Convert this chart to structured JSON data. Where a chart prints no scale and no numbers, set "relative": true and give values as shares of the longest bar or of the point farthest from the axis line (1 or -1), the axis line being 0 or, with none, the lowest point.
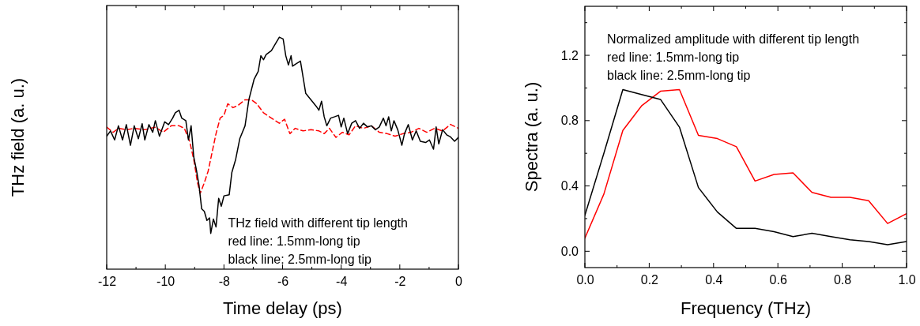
{
  "chart_data": [
    {
      "type": "line",
      "xlabel": "Time delay (ps)",
      "ylabel": "THz field (a. u.)",
      "relative": true,
      "xlim": [
        -12,
        0
      ],
      "xticks": [
        -12,
        {
          "value": -11,
          "label": null
        },
        -10,
        {
          "value": -9,
          "label": null
        },
        -8,
        {
          "value": -7,
          "label": null
        },
        -6,
        {
          "value": -5,
          "label": null
        },
        -4,
        {
          "value": -3,
          "label": null
        },
        -2,
        {
          "value": -1,
          "label": null
        },
        0
      ],
      "annotations": [
        "THz field with different tip length",
        "red line: 1.5mm-long tip",
        "black line: 2.5mm-long tip"
      ],
      "series": [
        {
          "color": "#ff0000",
          "line_style": "dashed",
          "x": [
            -12.0,
            -11.78,
            -11.6,
            -11.33,
            -11.06,
            -10.7,
            -10.34,
            -10.07,
            -9.8,
            -9.53,
            -9.35,
            -9.17,
            -9.03,
            -8.9,
            -8.81,
            -8.67,
            -8.54,
            -8.4,
            -8.27,
            -8.13,
            -8.0,
            -7.87,
            -7.69,
            -7.51,
            -7.28,
            -7.06,
            -6.88,
            -6.65,
            -6.38,
            -6.11,
            -5.93,
            -5.75,
            -5.57,
            -5.3,
            -5.03,
            -4.76,
            -4.58,
            -4.4,
            -4.18,
            -3.96,
            -3.73,
            -3.51,
            -3.24,
            -2.97,
            -2.7,
            -2.43,
            -2.16,
            -1.89,
            -1.62,
            -1.35,
            -1.08,
            -0.81,
            -0.54,
            -0.27,
            0.0
          ],
          "values": [
            0.612,
            0.59,
            0.607,
            0.601,
            0.607,
            0.601,
            0.612,
            0.59,
            0.618,
            0.618,
            0.607,
            0.551,
            0.473,
            0.372,
            0.327,
            0.372,
            0.422,
            0.506,
            0.584,
            0.651,
            0.663,
            0.713,
            0.696,
            0.707,
            0.73,
            0.73,
            0.713,
            0.674,
            0.651,
            0.629,
            0.646,
            0.584,
            0.607,
            0.596,
            0.601,
            0.596,
            0.584,
            0.607,
            0.568,
            0.59,
            0.579,
            0.618,
            0.607,
            0.618,
            0.59,
            0.584,
            0.573,
            0.584,
            0.59,
            0.607,
            0.59,
            0.607,
            0.596,
            0.624,
            0.607
          ]
        },
        {
          "color": "#000000",
          "line_style": "solid",
          "x": [
            -12.0,
            -11.87,
            -11.73,
            -11.6,
            -11.46,
            -11.33,
            -11.19,
            -11.06,
            -10.92,
            -10.79,
            -10.7,
            -10.56,
            -10.43,
            -10.34,
            -10.2,
            -10.02,
            -9.89,
            -9.75,
            -9.66,
            -9.53,
            -9.44,
            -9.3,
            -9.21,
            -9.12,
            -9.03,
            -8.94,
            -8.85,
            -8.76,
            -8.67,
            -8.58,
            -8.49,
            -8.45,
            -8.36,
            -8.27,
            -8.18,
            -8.09,
            -8.0,
            -7.82,
            -7.73,
            -7.6,
            -7.46,
            -7.28,
            -7.15,
            -6.97,
            -6.83,
            -6.74,
            -6.65,
            -6.56,
            -6.38,
            -6.25,
            -6.11,
            -5.98,
            -5.89,
            -5.8,
            -5.71,
            -5.66,
            -5.53,
            -5.39,
            -5.21,
            -5.03,
            -4.85,
            -4.76,
            -4.67,
            -4.58,
            -4.49,
            -4.36,
            -4.22,
            -4.09,
            -4.0,
            -3.91,
            -3.78,
            -3.64,
            -3.51,
            -3.37,
            -3.24,
            -3.1,
            -2.97,
            -2.83,
            -2.7,
            -2.56,
            -2.47,
            -2.38,
            -2.29,
            -2.2,
            -2.07,
            -1.93,
            -1.84,
            -1.71,
            -1.57,
            -1.44,
            -1.3,
            -1.12,
            -0.99,
            -0.85,
            -0.76,
            -0.67,
            -0.54,
            -0.4,
            -0.27,
            -0.13,
            0.0
          ],
          "values": [
            0.573,
            0.596,
            0.557,
            0.618,
            0.557,
            0.623,
            0.534,
            0.618,
            0.562,
            0.627,
            0.557,
            0.623,
            0.59,
            0.64,
            0.573,
            0.635,
            0.623,
            0.651,
            0.674,
            0.685,
            0.651,
            0.64,
            0.557,
            0.618,
            0.484,
            0.428,
            0.361,
            0.26,
            0.249,
            0.21,
            0.221,
            0.154,
            0.216,
            0.182,
            0.305,
            0.271,
            0.316,
            0.321,
            0.417,
            0.473,
            0.562,
            0.618,
            0.73,
            0.819,
            0.853,
            0.92,
            0.903,
            0.925,
            0.942,
            0.97,
            1.0,
            0.992,
            0.92,
            0.88,
            0.92,
            0.875,
            0.886,
            0.897,
            0.758,
            0.73,
            0.702,
            0.685,
            0.724,
            0.657,
            0.618,
            0.651,
            0.657,
            0.663,
            0.613,
            0.651,
            0.584,
            0.629,
            0.64,
            0.607,
            0.629,
            0.613,
            0.618,
            0.601,
            0.613,
            0.651,
            0.618,
            0.657,
            0.596,
            0.64,
            0.601,
            0.534,
            0.584,
            0.623,
            0.557,
            0.596,
            0.551,
            0.546,
            0.557,
            0.517,
            0.613,
            0.54,
            0.601,
            0.579,
            0.57,
            0.551,
            0.568
          ]
        }
      ]
    },
    {
      "type": "line",
      "xlabel": "Frequency (THz)",
      "ylabel": "Spectra (a. u.)",
      "xlim": [
        0,
        1
      ],
      "ylim": [
        -0.1,
        1.5
      ],
      "xticks": [
        {
          "value": 0,
          "label": "0.0"
        },
        {
          "value": 0.1,
          "label": null
        },
        0.2,
        {
          "value": 0.3,
          "label": null
        },
        0.4,
        {
          "value": 0.5,
          "label": null
        },
        0.6,
        {
          "value": 0.7,
          "label": null
        },
        0.8,
        {
          "value": 0.9,
          "label": null
        },
        {
          "value": 1,
          "label": "1.0"
        }
      ],
      "yticks": [
        {
          "value": 0,
          "label": "0.0"
        },
        {
          "value": 0.2,
          "label": null
        },
        0.4,
        {
          "value": 0.6,
          "label": null
        },
        0.8,
        {
          "value": 1.0,
          "label": null
        },
        1.2,
        {
          "value": 1.4,
          "label": null
        }
      ],
      "annotations": [
        "Normalized amplitude with different tip length",
        "red line: 1.5mm-long tip",
        "black line: 2.5mm-long tip"
      ],
      "x": [
        0,
        0.059,
        0.118,
        0.176,
        0.235,
        0.294,
        0.353,
        0.412,
        0.471,
        0.529,
        0.588,
        0.647,
        0.706,
        0.765,
        0.824,
        0.882,
        0.941,
        1.0
      ],
      "series": [
        {
          "color": "#ff0000",
          "values": [
            0.08,
            0.35,
            0.74,
            0.89,
            0.98,
            0.99,
            0.71,
            0.69,
            0.64,
            0.43,
            0.47,
            0.48,
            0.36,
            0.33,
            0.33,
            0.31,
            0.17,
            0.23
          ]
        },
        {
          "color": "#000000",
          "values": [
            0.22,
            0.6,
            0.99,
            0.96,
            0.93,
            0.76,
            0.39,
            0.24,
            0.14,
            0.14,
            0.12,
            0.09,
            0.11,
            0.09,
            0.07,
            0.06,
            0.04,
            0.06
          ]
        }
      ]
    }
  ]
}
